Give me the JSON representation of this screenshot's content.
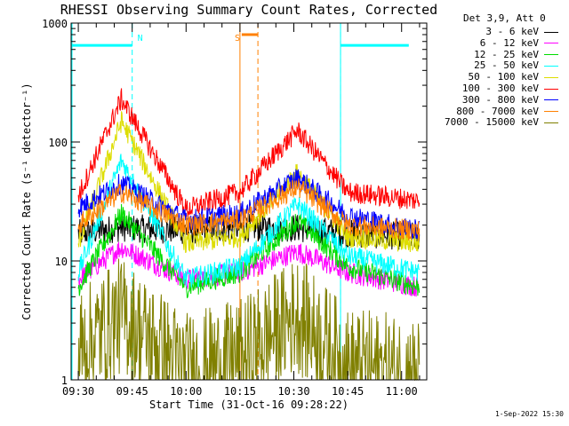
{
  "chart_data": {
    "type": "line",
    "title": "RHESSI Observing Summary Count Rates, Corrected",
    "xlabel": "Start Time (31-Oct-16 09:28:22)",
    "ylabel": "Corrected Count Rate (s⁻¹ detector⁻¹)",
    "y_scale": "log",
    "ylim": [
      1,
      1000
    ],
    "xlim_minutes": [
      "09:28",
      "11:07"
    ],
    "x_tick_labels": [
      "09:30",
      "09:45",
      "10:00",
      "10:15",
      "10:30",
      "10:45",
      "11:00"
    ],
    "y_tick_labels": [
      "1",
      "10",
      "100",
      "1000"
    ],
    "legend_header": "Det 3,9, Att 0",
    "legend_placement": "right",
    "series": [
      {
        "name": "3 - 6 keV",
        "color": "#000000",
        "values_at": {
          "09:30": 17,
          "09:42": 19,
          "10:00": 18,
          "10:15": 19,
          "10:30": 19,
          "10:45": 17,
          "11:05": 16
        }
      },
      {
        "name": "6 - 12 keV",
        "color": "#ff00ff",
        "values_at": {
          "09:30": 7,
          "09:42": 13,
          "10:00": 7,
          "10:15": 8,
          "10:31": 12,
          "10:45": 8,
          "11:05": 6
        }
      },
      {
        "name": "12 - 25 keV",
        "color": "#00dd00",
        "values_at": {
          "09:30": 6,
          "09:42": 25,
          "10:00": 6,
          "10:15": 8,
          "10:31": 22,
          "10:45": 9,
          "11:05": 6
        }
      },
      {
        "name": "25 - 50 keV",
        "color": "#00ffff",
        "values_at": {
          "09:30": 8,
          "09:42": 70,
          "10:00": 7,
          "10:15": 9,
          "10:31": 30,
          "10:45": 11,
          "11:05": 8
        }
      },
      {
        "name": "50 - 100 keV",
        "color": "#dddd00",
        "values_at": {
          "09:30": 14,
          "09:42": 150,
          "10:00": 14,
          "10:15": 16,
          "10:31": 55,
          "10:45": 16,
          "11:05": 14
        }
      },
      {
        "name": "100 - 300 keV",
        "color": "#ff0000",
        "values_at": {
          "09:30": 35,
          "09:42": 230,
          "10:00": 27,
          "10:15": 38,
          "10:31": 125,
          "10:45": 38,
          "11:05": 32
        }
      },
      {
        "name": "300 - 800 keV",
        "color": "#0000ff",
        "values_at": {
          "09:30": 28,
          "09:42": 45,
          "10:00": 22,
          "10:15": 25,
          "10:31": 50,
          "10:45": 24,
          "11:05": 18
        }
      },
      {
        "name": "800 - 7000 keV",
        "color": "#ff8000",
        "values_at": {
          "09:30": 20,
          "09:42": 38,
          "10:00": 20,
          "10:15": 22,
          "10:31": 42,
          "10:45": 20,
          "11:05": 18
        }
      },
      {
        "name": "7000 - 15000 keV",
        "color": "#808000",
        "values_at": {
          "09:30": 1.8,
          "09:42": 3.5,
          "10:00": 1.2,
          "10:15": 1.5,
          "10:31": 3.6,
          "10:45": 1.3,
          "11:05": 1.1
        }
      }
    ],
    "annotations": [
      {
        "label": "N",
        "color": "#00ffff",
        "text_at": "09:45"
      },
      {
        "label": "S",
        "color": "#ff8000",
        "text_at": "10:17"
      }
    ],
    "night_bands": [
      [
        "09:28",
        "09:45"
      ],
      [
        "10:43",
        "11:02"
      ]
    ],
    "saa_band": [
      "10:15",
      "10:20"
    ],
    "night_level": 650,
    "saa_level": 800
  },
  "footer_date": "1-Sep-2022 15:30"
}
